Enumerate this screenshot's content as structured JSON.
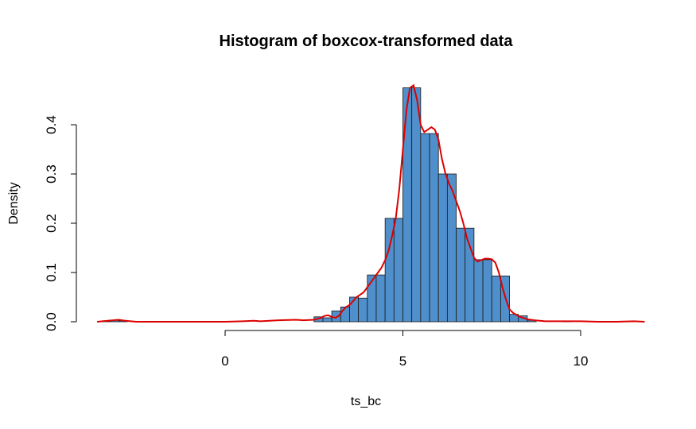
{
  "chart_data": {
    "type": "bar",
    "title": "Histogram of boxcox-transformed data",
    "xlabel": "ts_bc",
    "ylabel": "Density",
    "xlim": [
      -3.6,
      11.8
    ],
    "ylim": [
      0,
      0.48
    ],
    "x_ticks": [
      0,
      5,
      10
    ],
    "x_tick_labels": [
      "0",
      "5",
      "10"
    ],
    "y_ticks": [
      0,
      0.1,
      0.2,
      0.3,
      0.4
    ],
    "y_tick_labels": [
      "0.0",
      "0.1",
      "0.2",
      "0.3",
      "0.4"
    ],
    "bin_width": 0.25,
    "bars": [
      {
        "x0": -3.5,
        "x1": -3.25,
        "density": 0.001
      },
      {
        "x0": -3.25,
        "x1": -3.0,
        "density": 0.003
      },
      {
        "x0": -3.0,
        "x1": -2.75,
        "density": 0.002
      },
      {
        "x0": 2.5,
        "x1": 2.75,
        "density": 0.01
      },
      {
        "x0": 2.75,
        "x1": 3.0,
        "density": 0.008
      },
      {
        "x0": 3.0,
        "x1": 3.25,
        "density": 0.022
      },
      {
        "x0": 3.25,
        "x1": 3.5,
        "density": 0.03
      },
      {
        "x0": 3.5,
        "x1": 3.75,
        "density": 0.05
      },
      {
        "x0": 3.75,
        "x1": 4.0,
        "density": 0.048
      },
      {
        "x0": 4.0,
        "x1": 4.25,
        "density": 0.095
      },
      {
        "x0": 4.25,
        "x1": 4.5,
        "density": 0.095
      },
      {
        "x0": 4.5,
        "x1": 4.75,
        "density": 0.21
      },
      {
        "x0": 4.75,
        "x1": 5.0,
        "density": 0.21
      },
      {
        "x0": 5.0,
        "x1": 5.25,
        "density": 0.475
      },
      {
        "x0": 5.25,
        "x1": 5.5,
        "density": 0.475
      },
      {
        "x0": 5.5,
        "x1": 5.75,
        "density": 0.382
      },
      {
        "x0": 5.75,
        "x1": 6.0,
        "density": 0.382
      },
      {
        "x0": 6.0,
        "x1": 6.25,
        "density": 0.3
      },
      {
        "x0": 6.25,
        "x1": 6.5,
        "density": 0.3
      },
      {
        "x0": 6.5,
        "x1": 6.75,
        "density": 0.19
      },
      {
        "x0": 6.75,
        "x1": 7.0,
        "density": 0.19
      },
      {
        "x0": 7.0,
        "x1": 7.25,
        "density": 0.126
      },
      {
        "x0": 7.25,
        "x1": 7.5,
        "density": 0.126
      },
      {
        "x0": 7.5,
        "x1": 7.75,
        "density": 0.093
      },
      {
        "x0": 7.75,
        "x1": 8.0,
        "density": 0.093
      },
      {
        "x0": 8.0,
        "x1": 8.25,
        "density": 0.015
      },
      {
        "x0": 8.25,
        "x1": 8.5,
        "density": 0.012
      },
      {
        "x0": 8.5,
        "x1": 8.75,
        "density": 0.003
      },
      {
        "x0": 9.5,
        "x1": 9.75,
        "density": 0.001
      }
    ],
    "density_curve": {
      "x": [
        -3.6,
        -3.3,
        -3.0,
        -2.8,
        -2.5,
        -2.0,
        0,
        0.5,
        0.8,
        1.0,
        1.5,
        2.0,
        2.2,
        2.5,
        2.7,
        2.8,
        2.9,
        3.0,
        3.1,
        3.2,
        3.3,
        3.4,
        3.5,
        3.6,
        3.7,
        3.8,
        3.9,
        4.0,
        4.1,
        4.2,
        4.3,
        4.4,
        4.5,
        4.6,
        4.7,
        4.8,
        4.9,
        5.0,
        5.1,
        5.2,
        5.3,
        5.4,
        5.5,
        5.6,
        5.7,
        5.8,
        5.9,
        6.0,
        6.1,
        6.2,
        6.3,
        6.4,
        6.5,
        6.6,
        6.7,
        6.8,
        6.9,
        7.0,
        7.1,
        7.2,
        7.3,
        7.4,
        7.5,
        7.6,
        7.7,
        7.8,
        7.9,
        8.0,
        8.1,
        8.2,
        8.3,
        8.5,
        8.7,
        9.0,
        9.5,
        10.0,
        10.5,
        11.0,
        11.5,
        11.8
      ],
      "y": [
        0.0,
        0.002,
        0.004,
        0.002,
        0.0,
        0.0,
        0.0,
        0.001,
        0.002,
        0.001,
        0.003,
        0.004,
        0.003,
        0.004,
        0.008,
        0.012,
        0.013,
        0.01,
        0.008,
        0.012,
        0.022,
        0.03,
        0.034,
        0.042,
        0.05,
        0.055,
        0.06,
        0.07,
        0.08,
        0.09,
        0.1,
        0.11,
        0.125,
        0.145,
        0.175,
        0.21,
        0.27,
        0.35,
        0.43,
        0.475,
        0.48,
        0.45,
        0.4,
        0.385,
        0.39,
        0.395,
        0.39,
        0.37,
        0.33,
        0.3,
        0.28,
        0.265,
        0.245,
        0.225,
        0.2,
        0.17,
        0.15,
        0.13,
        0.122,
        0.125,
        0.128,
        0.128,
        0.127,
        0.12,
        0.1,
        0.07,
        0.045,
        0.025,
        0.018,
        0.014,
        0.01,
        0.005,
        0.003,
        0.001,
        0.001,
        0.001,
        0.0,
        0.0,
        0.001,
        0.0
      ]
    },
    "colors": {
      "bar_fill": "#4f8fcc",
      "bar_border": "#1a1a1a",
      "density_line": "#dd0000"
    },
    "grid": false,
    "legend": "none"
  }
}
